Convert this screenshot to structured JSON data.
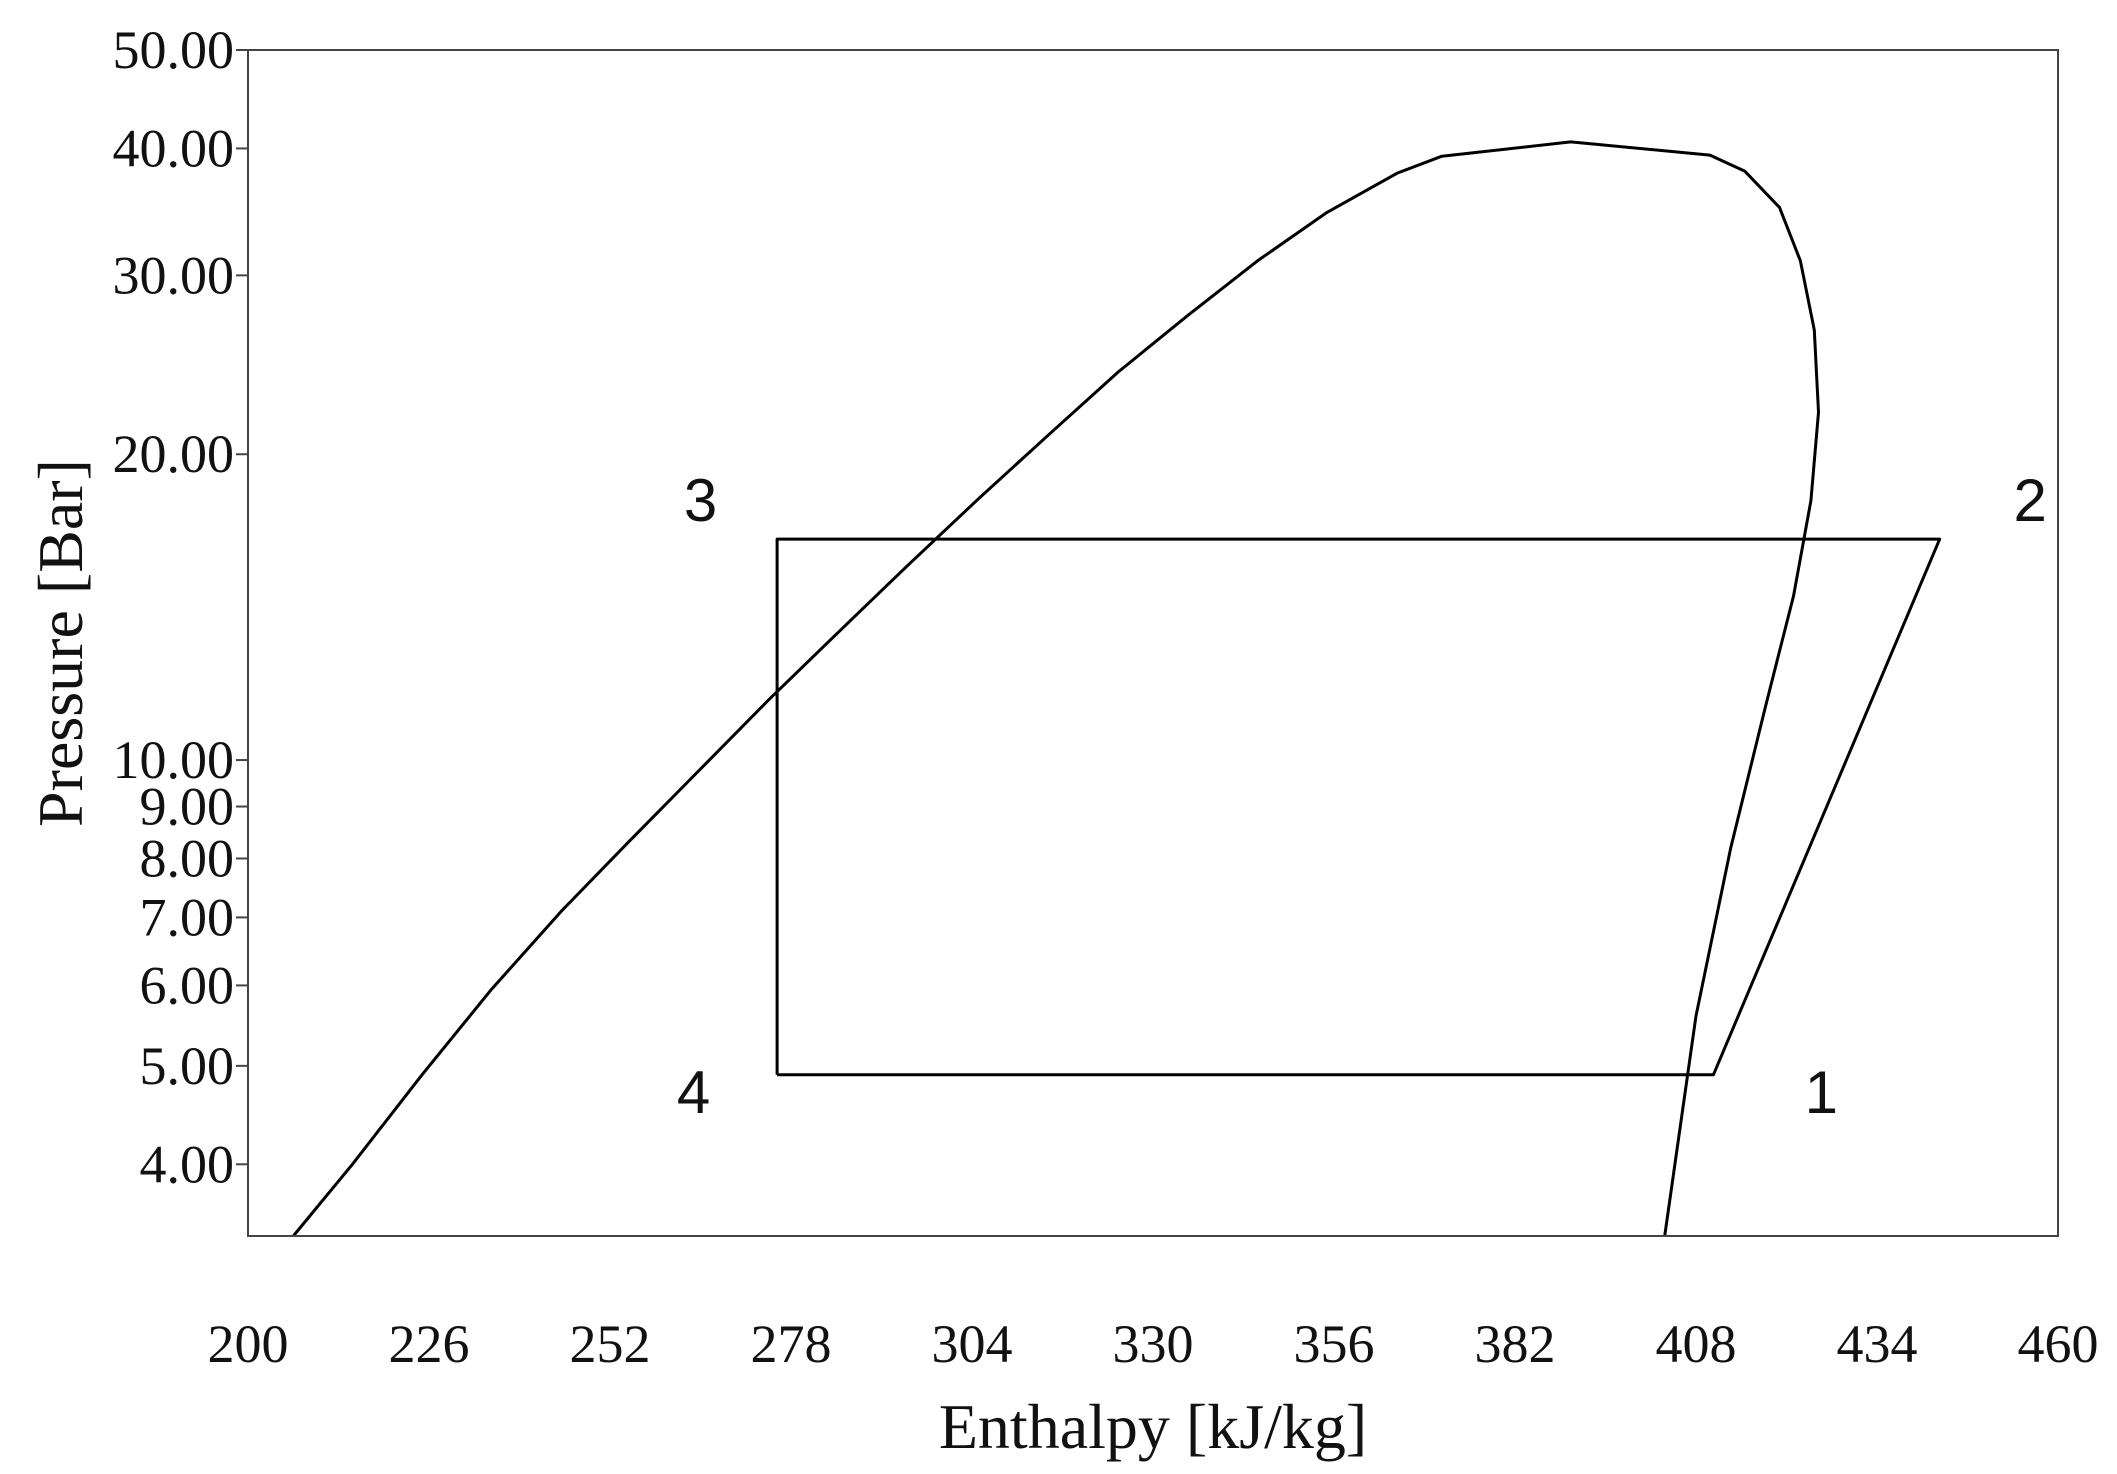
{
  "chart_data": {
    "type": "line",
    "xlabel": "Enthalpy [kJ/kg]",
    "ylabel": "Pressure [Bar]",
    "xlim": [
      200,
      460
    ],
    "ylim": [
      3.4,
      50
    ],
    "y_scale": "log",
    "grid": false,
    "x_ticks": [
      200,
      226,
      252,
      278,
      304,
      330,
      356,
      382,
      408,
      434,
      460
    ],
    "x_tick_labels": [
      "200",
      "226",
      "252",
      "278",
      "304",
      "330",
      "356",
      "382",
      "408",
      "434",
      "460"
    ],
    "y_ticks": [
      4,
      5,
      6,
      7,
      8,
      9,
      10,
      20,
      30,
      40,
      50
    ],
    "y_tick_labels": [
      "4.00",
      "5.00",
      "6.00",
      "7.00",
      "8.00",
      "9.00",
      "10.00",
      "20.00",
      "30.00",
      "40.00",
      "50.00"
    ],
    "series": [
      {
        "role": "saturation-dome",
        "color": "#000000",
        "points": [
          [
            206.5,
            3.4
          ],
          [
            215,
            4.0
          ],
          [
            225,
            4.9
          ],
          [
            235,
            5.95
          ],
          [
            245,
            7.1
          ],
          [
            255,
            8.35
          ],
          [
            265,
            9.8
          ],
          [
            275,
            11.5
          ],
          [
            285,
            13.4
          ],
          [
            295,
            15.6
          ],
          [
            305,
            18.1
          ],
          [
            315,
            20.9
          ],
          [
            325,
            24.1
          ],
          [
            335,
            27.4
          ],
          [
            345,
            31.0
          ],
          [
            355,
            34.6
          ],
          [
            365,
            37.8
          ],
          [
            371.5,
            39.3
          ],
          [
            390,
            40.6
          ],
          [
            410,
            39.4
          ],
          [
            415,
            38.0
          ],
          [
            420,
            35.0
          ],
          [
            423,
            31.0
          ],
          [
            425,
            26.5
          ],
          [
            425.6,
            22.0
          ],
          [
            424.5,
            18.0
          ],
          [
            422,
            14.5
          ],
          [
            418,
            11.3
          ],
          [
            413,
            8.2
          ],
          [
            408,
            5.6
          ],
          [
            403.5,
            3.4
          ]
        ]
      },
      {
        "role": "refrigeration-cycle",
        "color": "#000000",
        "points": [
          [
            276,
            4.9
          ],
          [
            410.5,
            4.9
          ],
          [
            443,
            16.5
          ],
          [
            276,
            16.5
          ],
          [
            276,
            4.9
          ]
        ]
      }
    ],
    "annotations": [
      {
        "text": "1",
        "x": 426,
        "y": 4.9
      },
      {
        "text": "2",
        "x": 456,
        "y": 16.5
      },
      {
        "text": "3",
        "x": 265,
        "y": 16.5
      },
      {
        "text": "4",
        "x": 264,
        "y": 4.9
      }
    ]
  }
}
